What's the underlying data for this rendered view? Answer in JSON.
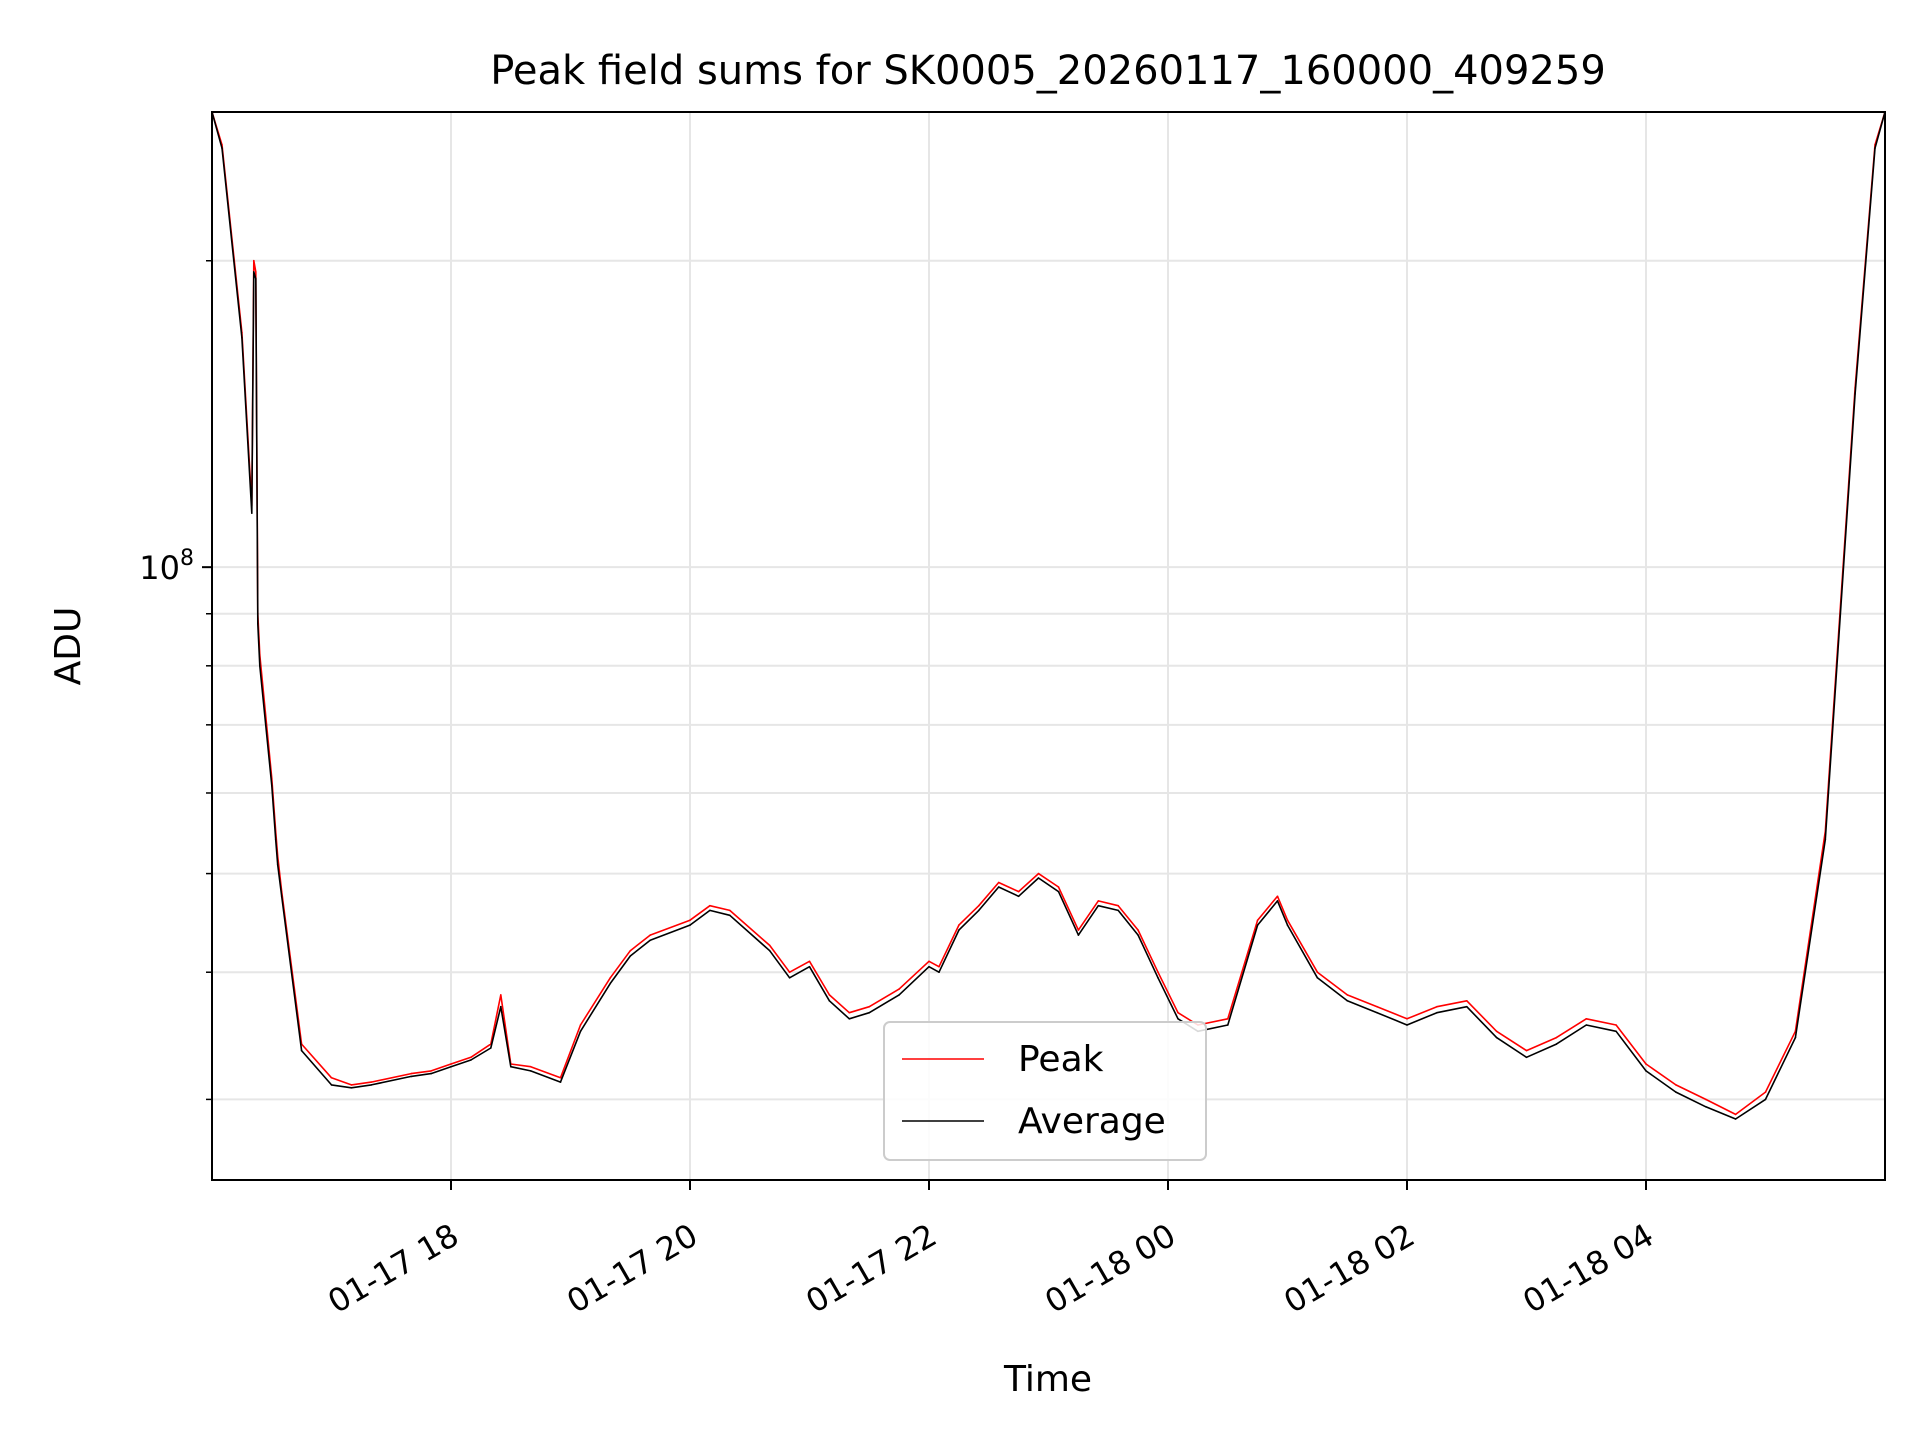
{
  "chart_data": {
    "type": "line",
    "title": "Peak field sums for SK0005_20260117_160000_409259",
    "xlabel": "Time",
    "ylabel": "ADU",
    "yscale": "log",
    "ylim": [
      25000000,
      280000000
    ],
    "xlim_hours_from_start": [
      0,
      14
    ],
    "x_start": "2026-01-17 16:00",
    "x_ticks": [
      "01-17 18",
      "01-17 20",
      "01-17 22",
      "01-18 00",
      "01-18 02",
      "01-18 04"
    ],
    "y_major_tick": {
      "base": "10",
      "exp": "8"
    },
    "grid": true,
    "legend": "lower center",
    "series": [
      {
        "name": "Peak",
        "color": "#ff0000",
        "x": [
          "01-17 16:00",
          "01-17 16:05",
          "01-17 16:15",
          "01-17 16:20",
          "01-17 16:21",
          "01-17 16:22",
          "01-17 16:23",
          "01-17 16:24",
          "01-17 16:30",
          "01-17 16:32",
          "01-17 16:33",
          "01-17 16:35",
          "01-17 16:45",
          "01-17 17:00",
          "01-17 17:10",
          "01-17 17:20",
          "01-17 17:40",
          "01-17 17:50",
          "01-17 18:00",
          "01-17 18:10",
          "01-17 18:20",
          "01-17 18:25",
          "01-17 18:30",
          "01-17 18:40",
          "01-17 18:55",
          "01-17 19:05",
          "01-17 19:20",
          "01-17 19:30",
          "01-17 19:40",
          "01-17 20:00",
          "01-17 20:10",
          "01-17 20:20",
          "01-17 20:40",
          "01-17 20:50",
          "01-17 21:00",
          "01-17 21:10",
          "01-17 21:20",
          "01-17 21:30",
          "01-17 21:45",
          "01-17 22:00",
          "01-17 22:05",
          "01-17 22:15",
          "01-17 22:25",
          "01-17 22:35",
          "01-17 22:45",
          "01-17 22:55",
          "01-17 23:05",
          "01-17 23:15",
          "01-17 23:25",
          "01-17 23:35",
          "01-17 23:45",
          "01-17 23:55",
          "01-18 00:05",
          "01-18 00:15",
          "01-18 00:30",
          "01-18 00:45",
          "01-18 00:55",
          "01-18 01:00",
          "01-18 01:15",
          "01-18 01:30",
          "01-18 01:45",
          "01-18 02:00",
          "01-18 02:15",
          "01-18 02:30",
          "01-18 02:45",
          "01-18 03:00",
          "01-18 03:15",
          "01-18 03:30",
          "01-18 03:45",
          "01-18 04:00",
          "01-18 04:15",
          "01-18 04:30",
          "01-18 04:45",
          "01-18 05:00",
          "01-18 05:15",
          "01-18 05:30",
          "01-18 05:45",
          "01-18 05:55",
          "01-18 06:00"
        ],
        "values": [
          280000000,
          260000000,
          170000000,
          115000000,
          200000000,
          195000000,
          90000000,
          82000000,
          62000000,
          55000000,
          52000000,
          48000000,
          34000000,
          31500000,
          31000000,
          31200000,
          31800000,
          32000000,
          32500000,
          33000000,
          34000000,
          38000000,
          32500000,
          32300000,
          31500000,
          35500000,
          39500000,
          42000000,
          43500000,
          45000000,
          46500000,
          46000000,
          42500000,
          40000000,
          41000000,
          38000000,
          36500000,
          37000000,
          38500000,
          41000000,
          40500000,
          44500000,
          46500000,
          49000000,
          48000000,
          50000000,
          48500000,
          44000000,
          47000000,
          46500000,
          44000000,
          40000000,
          36500000,
          35500000,
          36000000,
          45000000,
          47500000,
          45000000,
          40000000,
          38000000,
          37000000,
          36000000,
          37000000,
          37500000,
          35000000,
          33500000,
          34500000,
          36000000,
          35500000,
          32500000,
          31000000,
          30000000,
          29000000,
          30500000,
          35000000,
          55000000,
          150000000,
          260000000,
          280000000
        ]
      },
      {
        "name": "Average",
        "color": "#000000",
        "x": [
          "01-17 16:00",
          "01-17 16:05",
          "01-17 16:15",
          "01-17 16:20",
          "01-17 16:21",
          "01-17 16:22",
          "01-17 16:23",
          "01-17 16:24",
          "01-17 16:30",
          "01-17 16:32",
          "01-17 16:33",
          "01-17 16:35",
          "01-17 16:45",
          "01-17 17:00",
          "01-17 17:10",
          "01-17 17:20",
          "01-17 17:40",
          "01-17 17:50",
          "01-17 18:00",
          "01-17 18:10",
          "01-17 18:20",
          "01-17 18:25",
          "01-17 18:30",
          "01-17 18:40",
          "01-17 18:55",
          "01-17 19:05",
          "01-17 19:20",
          "01-17 19:30",
          "01-17 19:40",
          "01-17 20:00",
          "01-17 20:10",
          "01-17 20:20",
          "01-17 20:40",
          "01-17 20:50",
          "01-17 21:00",
          "01-17 21:10",
          "01-17 21:20",
          "01-17 21:30",
          "01-17 21:45",
          "01-17 22:00",
          "01-17 22:05",
          "01-17 22:15",
          "01-17 22:25",
          "01-17 22:35",
          "01-17 22:45",
          "01-17 22:55",
          "01-17 23:05",
          "01-17 23:15",
          "01-17 23:25",
          "01-17 23:35",
          "01-17 23:45",
          "01-17 23:55",
          "01-18 00:05",
          "01-18 00:15",
          "01-18 00:30",
          "01-18 00:45",
          "01-18 00:55",
          "01-18 01:00",
          "01-18 01:15",
          "01-18 01:30",
          "01-18 01:45",
          "01-18 02:00",
          "01-18 02:15",
          "01-18 02:30",
          "01-18 02:45",
          "01-18 03:00",
          "01-18 03:15",
          "01-18 03:30",
          "01-18 03:45",
          "01-18 04:00",
          "01-18 04:15",
          "01-18 04:30",
          "01-18 04:45",
          "01-18 05:00",
          "01-18 05:15",
          "01-18 05:30",
          "01-18 05:45",
          "01-18 05:55",
          "01-18 06:00"
        ],
        "values": [
          280000000,
          258000000,
          168000000,
          113000000,
          195000000,
          192000000,
          88000000,
          80000000,
          61000000,
          54000000,
          51000000,
          47500000,
          33500000,
          31000000,
          30800000,
          31000000,
          31600000,
          31800000,
          32300000,
          32800000,
          33700000,
          37000000,
          32300000,
          32000000,
          31200000,
          35000000,
          39000000,
          41500000,
          43000000,
          44500000,
          46000000,
          45500000,
          42000000,
          39500000,
          40500000,
          37500000,
          36000000,
          36500000,
          38000000,
          40500000,
          40000000,
          44000000,
          46000000,
          48500000,
          47500000,
          49500000,
          48000000,
          43500000,
          46500000,
          46000000,
          43500000,
          39500000,
          36000000,
          35000000,
          35500000,
          44500000,
          47000000,
          44500000,
          39500000,
          37500000,
          36500000,
          35500000,
          36500000,
          37000000,
          34500000,
          33000000,
          34000000,
          35500000,
          35000000,
          32000000,
          30500000,
          29500000,
          28700000,
          30000000,
          34500000,
          54000000,
          148000000,
          258000000,
          280000000
        ]
      }
    ]
  }
}
